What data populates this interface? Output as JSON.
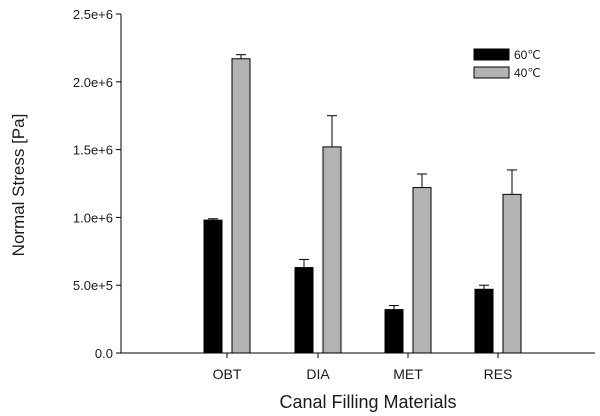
{
  "chart_data": {
    "type": "bar",
    "xlabel": "Canal Filling Materials",
    "ylabel": "Normal Stress [Pa]",
    "categories": [
      "OBT",
      "DIA",
      "MET",
      "RES"
    ],
    "ylim": [
      0,
      2500000
    ],
    "yticks": [
      {
        "value": 0,
        "label": "0.0"
      },
      {
        "value": 500000,
        "label": "5.0e+5"
      },
      {
        "value": 1000000,
        "label": "1.0e+6"
      },
      {
        "value": 1500000,
        "label": "1.5e+6"
      },
      {
        "value": 2000000,
        "label": "2.0e+6"
      },
      {
        "value": 2500000,
        "label": "2.5e+6"
      }
    ],
    "series": [
      {
        "name": "60℃",
        "color": "#000000",
        "values": [
          980000,
          630000,
          320000,
          470000
        ],
        "errors": [
          10000,
          60000,
          30000,
          30000
        ]
      },
      {
        "name": "40℃",
        "color": "#b3b3b3",
        "values": [
          2170000,
          1520000,
          1220000,
          1170000
        ],
        "errors": [
          30000,
          230000,
          100000,
          180000
        ]
      }
    ],
    "legend_position": "top-right",
    "grid": false
  }
}
